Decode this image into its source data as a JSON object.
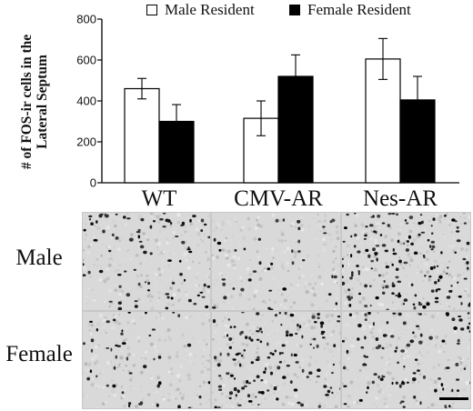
{
  "legend": {
    "male_label": "Male Resident",
    "female_label": "Female Resident"
  },
  "colors": {
    "male_fill": "#ffffff",
    "female_fill": "#000000",
    "axis": "#000000"
  },
  "chart_data": {
    "type": "bar",
    "title": "",
    "xlabel": "",
    "ylabel_lines": [
      "# of FOS-ir cells in the",
      "Lateral Septum"
    ],
    "categories": [
      "WT",
      "CMV-AR",
      "Nes-AR"
    ],
    "ylim": [
      0,
      800
    ],
    "yticks": [
      0,
      200,
      400,
      600,
      800
    ],
    "grid": false,
    "legend_position": "top",
    "error_bars": "upper and lower whiskers",
    "series": [
      {
        "name": "Male Resident",
        "values": [
          460,
          315,
          605
        ],
        "errors": [
          50,
          85,
          100
        ]
      },
      {
        "name": "Female Resident",
        "values": [
          300,
          520,
          405
        ],
        "errors": [
          82,
          105,
          115
        ]
      }
    ]
  },
  "micrographs": {
    "row_labels": [
      "Male",
      "Female"
    ],
    "columns": [
      "WT",
      "CMV-AR",
      "Nes-AR"
    ],
    "cell_density": [
      [
        0.55,
        0.25,
        1.0
      ],
      [
        0.3,
        0.85,
        0.65
      ]
    ],
    "scale_bar": true
  }
}
